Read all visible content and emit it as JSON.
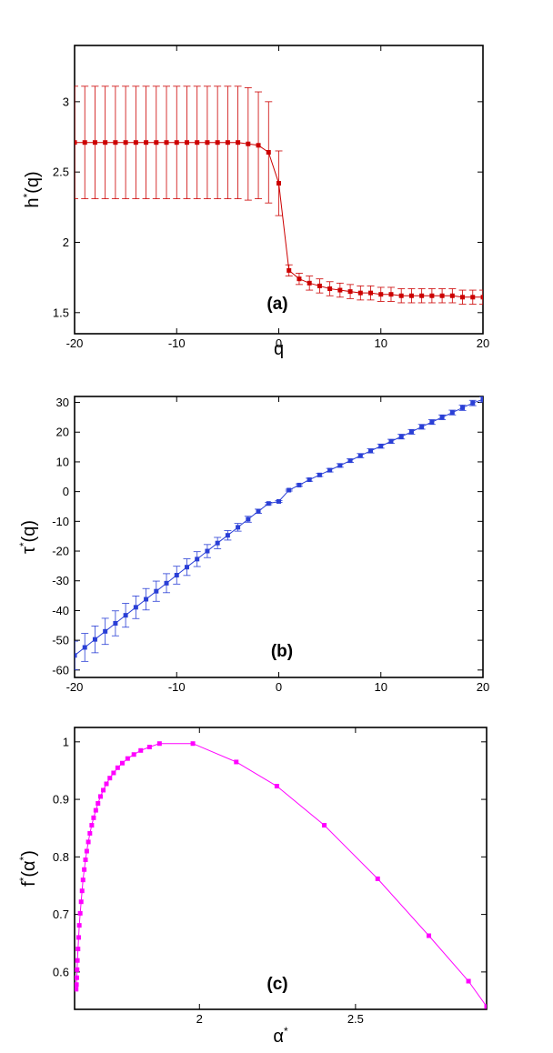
{
  "chart_data": [
    {
      "type": "line",
      "panel_label": "(a)",
      "xlabel": "q",
      "ylabel": "h*(q)",
      "xlim": [
        -20,
        20
      ],
      "ylim": [
        1.35,
        3.4
      ],
      "xticks": [
        -20,
        -10,
        0,
        10,
        20
      ],
      "yticks": [
        1.5,
        2,
        2.5,
        3
      ],
      "xtick_labels": [
        "-20",
        "-10",
        "0",
        "10",
        "20"
      ],
      "ytick_labels": [
        "1.5",
        "2",
        "2.5",
        "3"
      ],
      "grid": false,
      "color": "#cc0000",
      "marker": "square",
      "error_bars": true,
      "series": [
        {
          "x": [
            -20,
            -19,
            -18,
            -17,
            -16,
            -15,
            -14,
            -13,
            -12,
            -11,
            -10,
            -9,
            -8,
            -7,
            -6,
            -5,
            -4,
            -3,
            -2,
            -1,
            0,
            1,
            2,
            3,
            4,
            5,
            6,
            7,
            8,
            9,
            10,
            11,
            12,
            13,
            14,
            15,
            16,
            17,
            18,
            19,
            20
          ],
          "y": [
            2.71,
            2.71,
            2.71,
            2.71,
            2.71,
            2.71,
            2.71,
            2.71,
            2.71,
            2.71,
            2.71,
            2.71,
            2.71,
            2.71,
            2.71,
            2.71,
            2.71,
            2.7,
            2.69,
            2.64,
            2.42,
            1.8,
            1.74,
            1.71,
            1.69,
            1.67,
            1.66,
            1.65,
            1.64,
            1.64,
            1.63,
            1.63,
            1.62,
            1.62,
            1.62,
            1.62,
            1.62,
            1.62,
            1.61,
            1.61,
            1.61
          ],
          "yerr": [
            0.4,
            0.4,
            0.4,
            0.4,
            0.4,
            0.4,
            0.4,
            0.4,
            0.4,
            0.4,
            0.4,
            0.4,
            0.4,
            0.4,
            0.4,
            0.4,
            0.4,
            0.4,
            0.38,
            0.36,
            0.23,
            0.04,
            0.04,
            0.05,
            0.05,
            0.05,
            0.05,
            0.05,
            0.05,
            0.05,
            0.05,
            0.05,
            0.05,
            0.05,
            0.05,
            0.05,
            0.05,
            0.05,
            0.05,
            0.05,
            0.05
          ]
        }
      ]
    },
    {
      "type": "line",
      "panel_label": "(b)",
      "xlabel": "",
      "ylabel": "τ*(q)",
      "xlim": [
        -20,
        20
      ],
      "ylim": [
        -62.5,
        32
      ],
      "xticks": [
        -20,
        -10,
        0,
        10,
        20
      ],
      "yticks": [
        -60,
        -50,
        -40,
        -30,
        -20,
        -10,
        0,
        10,
        20,
        30
      ],
      "xtick_labels": [
        "-20",
        "-10",
        "0",
        "10",
        "20"
      ],
      "ytick_labels": [
        "-60",
        "-50",
        "-40",
        "-30",
        "-20",
        "-10",
        "0",
        "10",
        "20",
        "30"
      ],
      "grid": false,
      "color": "#2a3fd6",
      "marker": "square",
      "error_bars": true,
      "series": [
        {
          "x": [
            -20,
            -19,
            -18,
            -17,
            -16,
            -15,
            -14,
            -13,
            -12,
            -11,
            -10,
            -9,
            -8,
            -7,
            -6,
            -5,
            -4,
            -3,
            -2,
            -1,
            0,
            1,
            2,
            3,
            4,
            5,
            6,
            7,
            8,
            9,
            10,
            11,
            12,
            13,
            14,
            15,
            16,
            17,
            18,
            19,
            20
          ],
          "y": [
            -55.1,
            -52.4,
            -49.7,
            -47.0,
            -44.3,
            -41.6,
            -38.9,
            -36.2,
            -33.5,
            -30.8,
            -28.1,
            -25.4,
            -22.7,
            -20.0,
            -17.3,
            -14.7,
            -12.0,
            -9.3,
            -6.6,
            -4.0,
            -3.3,
            0.5,
            2.2,
            4.0,
            5.6,
            7.2,
            8.8,
            10.4,
            12.1,
            13.7,
            15.3,
            16.9,
            18.5,
            20.1,
            21.8,
            23.4,
            25.0,
            26.6,
            28.2,
            29.8,
            31.0
          ],
          "yerr": [
            4.8,
            4.7,
            4.5,
            4.4,
            4.2,
            4.0,
            3.8,
            3.6,
            3.4,
            3.2,
            3.0,
            2.8,
            2.5,
            2.2,
            1.9,
            1.6,
            1.3,
            1.0,
            0.7,
            0.4,
            0.3,
            0.3,
            0.4,
            0.5,
            0.5,
            0.6,
            0.6,
            0.6,
            0.7,
            0.7,
            0.7,
            0.7,
            0.8,
            0.8,
            0.8,
            0.8,
            0.8,
            0.8,
            0.9,
            0.9,
            0.9
          ]
        }
      ]
    },
    {
      "type": "line",
      "panel_label": "(c)",
      "xlabel": "α*",
      "ylabel": "f*(α*)",
      "xlim": [
        1.6,
        2.92
      ],
      "ylim": [
        0.535,
        1.025
      ],
      "xticks": [
        2,
        2.5
      ],
      "yticks": [
        0.6,
        0.7,
        0.8,
        0.9,
        1
      ],
      "xtick_labels": [
        "2",
        "2.5"
      ],
      "ytick_labels": [
        "0.6",
        "0.7",
        "0.8",
        "0.9",
        "1"
      ],
      "grid": false,
      "color": "#ff00ff",
      "marker": "square",
      "error_bars": false,
      "series": [
        {
          "x": [
            1.605,
            1.606,
            1.607,
            1.608,
            1.609,
            1.611,
            1.613,
            1.615,
            1.618,
            1.621,
            1.624,
            1.627,
            1.631,
            1.635,
            1.639,
            1.644,
            1.649,
            1.655,
            1.661,
            1.668,
            1.675,
            1.683,
            1.692,
            1.702,
            1.713,
            1.725,
            1.738,
            1.753,
            1.77,
            1.79,
            1.812,
            1.84,
            1.872,
            1.979,
            2.118,
            2.248,
            2.4,
            2.571,
            2.735,
            2.862,
            2.92
          ],
          "y": [
            0.57,
            0.578,
            0.59,
            0.604,
            0.62,
            0.64,
            0.66,
            0.681,
            0.702,
            0.722,
            0.741,
            0.76,
            0.778,
            0.795,
            0.81,
            0.826,
            0.841,
            0.855,
            0.868,
            0.881,
            0.893,
            0.905,
            0.916,
            0.927,
            0.937,
            0.946,
            0.955,
            0.963,
            0.971,
            0.978,
            0.985,
            0.991,
            0.997,
            0.997,
            0.965,
            0.923,
            0.855,
            0.762,
            0.663,
            0.584,
            0.54
          ]
        }
      ]
    }
  ]
}
